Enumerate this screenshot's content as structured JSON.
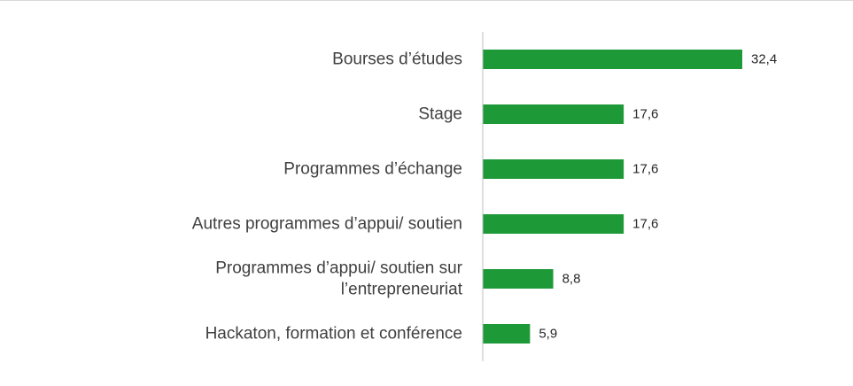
{
  "chart_data": {
    "type": "bar",
    "orientation": "horizontal",
    "categories": [
      [
        "Bourses d’études"
      ],
      [
        "Stage"
      ],
      [
        "Programmes d’échange"
      ],
      [
        "Autres programmes d’appui/ soutien"
      ],
      [
        "Programmes d’appui/ soutien sur",
        "l’entrepreneuriat"
      ],
      [
        "Hackaton, formation et conférence"
      ]
    ],
    "values": [
      32.4,
      17.6,
      17.6,
      17.6,
      8.8,
      5.9
    ],
    "value_labels": [
      "32,4",
      "17,6",
      "17,6",
      "17,6",
      "8,8",
      "5,9"
    ],
    "title": "",
    "xlabel": "",
    "ylabel": "",
    "xlim": [
      0,
      40
    ],
    "grid": false,
    "legend": "none",
    "colors": {
      "bar": "#1e9938",
      "axis": "#bfbfbf",
      "category_text": "#404040",
      "value_text": "#262626"
    }
  }
}
